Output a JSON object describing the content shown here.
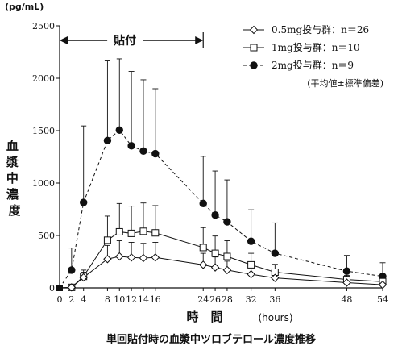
{
  "chart_data": {
    "type": "line",
    "y_unit": "(pg/mL)",
    "ylabel": "血漿中濃度",
    "xlabel": "時　間",
    "x_unit": "(hours)",
    "caption": "単回貼付時の血漿中ツロブテロール濃度推移",
    "ylim": [
      0,
      2500
    ],
    "xlim": [
      0,
      54
    ],
    "yticks": [
      0,
      500,
      1000,
      1500,
      2000,
      2500
    ],
    "xticks": [
      0,
      2,
      4,
      8,
      10,
      12,
      14,
      16,
      24,
      26,
      28,
      32,
      36,
      48,
      54
    ],
    "patch_period": {
      "label": "貼付",
      "from": 0,
      "to": 24
    },
    "note": "(平均値±標準偏差)",
    "series": [
      {
        "name": "0.5mg投与群：n＝26",
        "marker": "diamond",
        "line": "solid",
        "x": [
          0,
          2,
          4,
          8,
          10,
          12,
          14,
          16,
          24,
          26,
          28,
          32,
          36,
          48,
          54
        ],
        "y": [
          0,
          5,
          100,
          275,
          300,
          290,
          285,
          290,
          220,
          195,
          170,
          130,
          95,
          50,
          30
        ],
        "err": [
          0,
          10,
          50,
          130,
          150,
          145,
          140,
          145,
          110,
          100,
          85,
          65,
          48,
          25,
          15
        ]
      },
      {
        "name": "1mg投与群：n＝10",
        "marker": "square",
        "line": "solid",
        "x": [
          0,
          2,
          4,
          8,
          10,
          12,
          14,
          16,
          24,
          26,
          28,
          32,
          36,
          48,
          54
        ],
        "y": [
          0,
          5,
          110,
          455,
          535,
          520,
          540,
          525,
          385,
          330,
          300,
          220,
          150,
          80,
          60
        ],
        "err": [
          0,
          15,
          60,
          230,
          270,
          260,
          270,
          260,
          190,
          165,
          150,
          110,
          75,
          40,
          30
        ]
      },
      {
        "name": "2mg投与群：n＝9",
        "marker": "circle",
        "line": "dashed",
        "x": [
          0,
          2,
          4,
          8,
          10,
          12,
          14,
          16,
          24,
          26,
          28,
          32,
          36,
          48,
          54
        ],
        "y": [
          0,
          170,
          815,
          1405,
          1505,
          1355,
          1305,
          1280,
          805,
          695,
          630,
          445,
          330,
          160,
          110
        ],
        "err": [
          0,
          210,
          730,
          760,
          680,
          710,
          680,
          620,
          450,
          420,
          400,
          300,
          290,
          150,
          130
        ]
      }
    ]
  }
}
